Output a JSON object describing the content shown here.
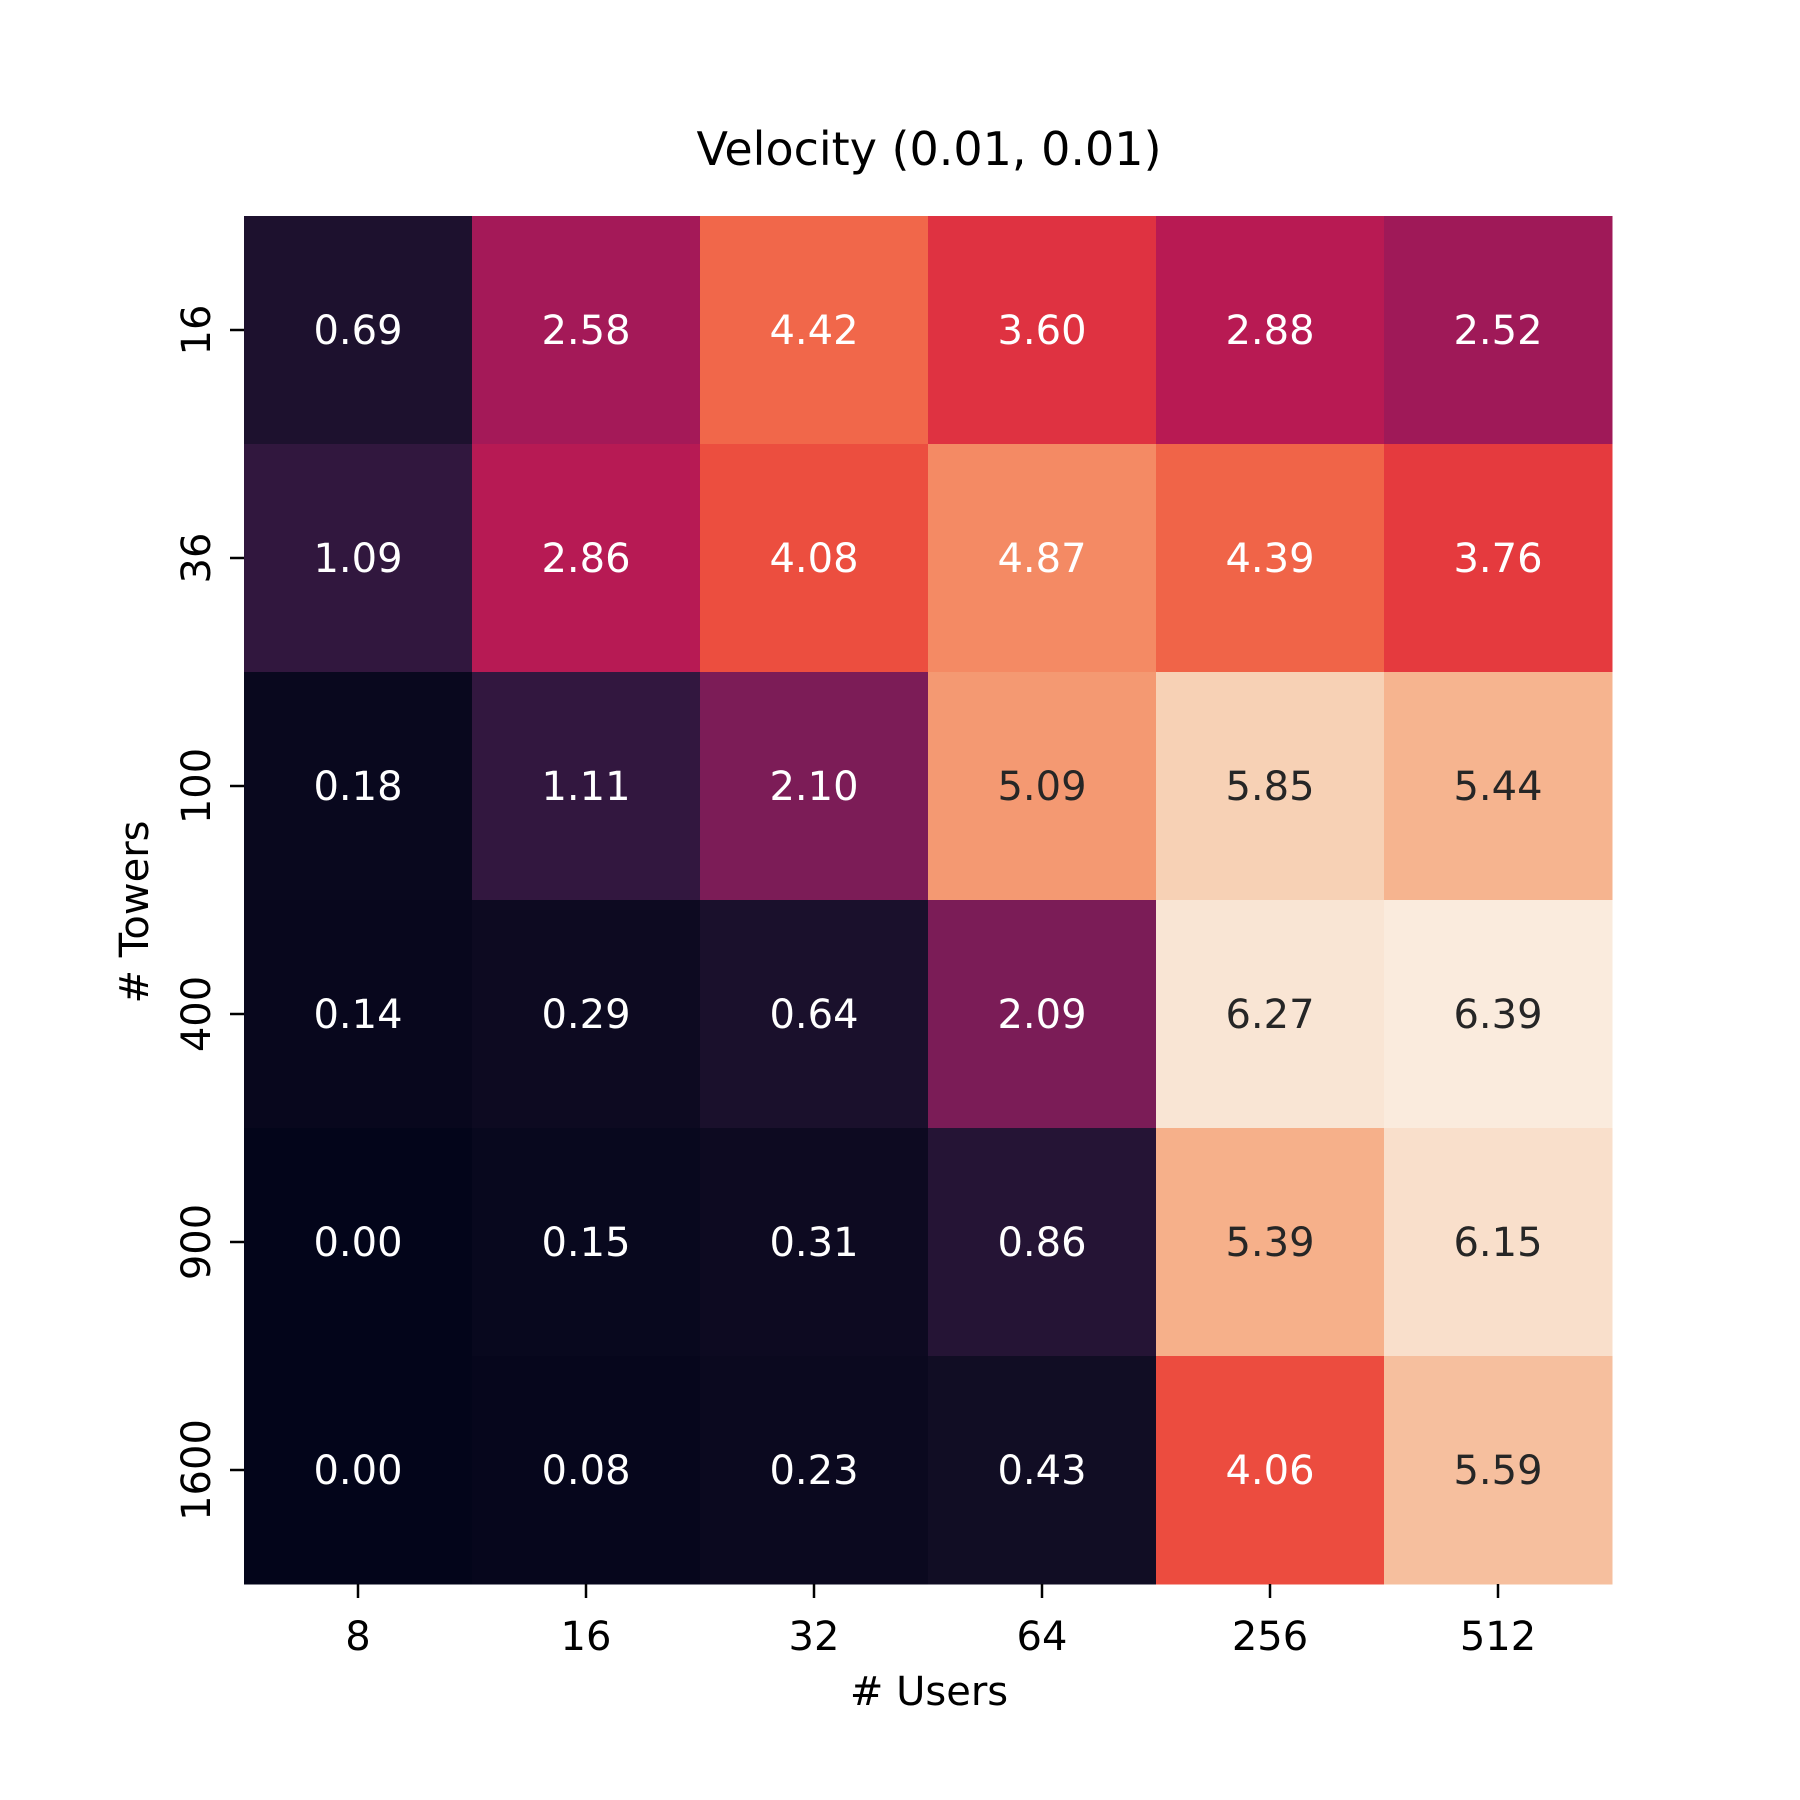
{
  "chart_data": {
    "type": "heatmap",
    "title": "Velocity (0.01, 0.01)",
    "xlabel": "# Users",
    "ylabel": "# Towers",
    "x_categories": [
      "8",
      "16",
      "32",
      "64",
      "256",
      "512"
    ],
    "y_categories": [
      "16",
      "36",
      "100",
      "400",
      "900",
      "1600"
    ],
    "values": [
      [
        0.69,
        2.58,
        4.42,
        3.6,
        2.88,
        2.52
      ],
      [
        1.09,
        2.86,
        4.08,
        4.87,
        4.39,
        3.76
      ],
      [
        0.18,
        1.11,
        2.1,
        5.09,
        5.85,
        5.44
      ],
      [
        0.14,
        0.29,
        0.64,
        2.09,
        6.27,
        6.39
      ],
      [
        0.0,
        0.15,
        0.31,
        0.86,
        5.39,
        6.15
      ],
      [
        0.0,
        0.08,
        0.23,
        0.43,
        4.06,
        5.59
      ]
    ],
    "value_labels": [
      [
        "0.69",
        "2.58",
        "4.42",
        "3.60",
        "2.88",
        "2.52"
      ],
      [
        "1.09",
        "2.86",
        "4.08",
        "4.87",
        "4.39",
        "3.76"
      ],
      [
        "0.18",
        "1.11",
        "2.10",
        "5.09",
        "5.85",
        "5.44"
      ],
      [
        "0.14",
        "0.29",
        "0.64",
        "2.09",
        "6.27",
        "6.39"
      ],
      [
        "0.00",
        "0.15",
        "0.31",
        "0.86",
        "5.39",
        "6.15"
      ],
      [
        "0.00",
        "0.08",
        "0.23",
        "0.43",
        "4.06",
        "5.59"
      ]
    ],
    "value_range": [
      0.0,
      6.39
    ],
    "colormap": "rocket",
    "colorbar": false,
    "grid": false,
    "label_color_light": "#ffffff",
    "label_color_dark": "#262626"
  }
}
